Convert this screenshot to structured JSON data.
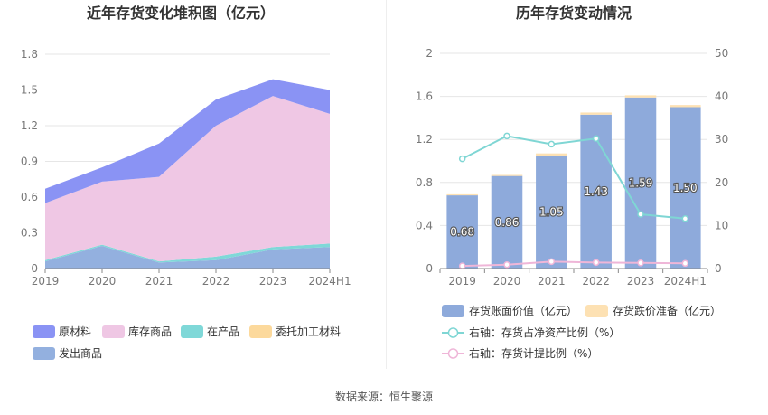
{
  "source": "数据来源：恒生聚源",
  "chart_data": [
    {
      "type": "area",
      "title": "近年存货变化堆积图（亿元）",
      "x": [
        "2019",
        "2020",
        "2021",
        "2022",
        "2023",
        "2024H1"
      ],
      "ylim": [
        0,
        1.8
      ],
      "yticks": [
        "0",
        "0.3",
        "0.6",
        "0.9",
        "1.2",
        "1.5",
        "1.8"
      ],
      "stacked": true,
      "grid": true,
      "legend_position": "bottom",
      "series": [
        {
          "name": "发出商品",
          "color": "#93b0df",
          "values": [
            0.06,
            0.19,
            0.05,
            0.07,
            0.16,
            0.18
          ]
        },
        {
          "name": "委托加工材料",
          "color": "#fcd99c",
          "values": [
            0.0,
            0.0,
            0.0,
            0.0,
            0.0,
            0.0
          ]
        },
        {
          "name": "在产品",
          "color": "#7fd8d8",
          "values": [
            0.01,
            0.01,
            0.01,
            0.03,
            0.02,
            0.03
          ]
        },
        {
          "name": "库存商品",
          "color": "#efc7e4",
          "values": [
            0.48,
            0.53,
            0.71,
            1.1,
            1.27,
            1.09
          ]
        },
        {
          "name": "原材料",
          "color": "#8a93f4",
          "values": [
            0.12,
            0.12,
            0.28,
            0.22,
            0.14,
            0.2
          ]
        }
      ],
      "legend": [
        {
          "name": "原材料",
          "color": "#8a93f4"
        },
        {
          "name": "库存商品",
          "color": "#efc7e4"
        },
        {
          "name": "在产品",
          "color": "#7fd8d8"
        },
        {
          "name": "委托加工材料",
          "color": "#fcd99c"
        },
        {
          "name": "发出商品",
          "color": "#93b0df"
        }
      ]
    },
    {
      "type": "bar",
      "title": "历年存货变动情况",
      "categories": [
        "2019",
        "2020",
        "2021",
        "2022",
        "2023",
        "2024H1"
      ],
      "ylim": [
        0,
        2
      ],
      "yticks": [
        "0",
        "0.4",
        "0.8",
        "1.2",
        "1.6",
        "2"
      ],
      "y2lim": [
        0,
        50
      ],
      "y2ticks": [
        "0",
        "10",
        "20",
        "30",
        "40",
        "50"
      ],
      "grid": true,
      "legend_position": "bottom",
      "series": [
        {
          "name": "存货账面价值（亿元）",
          "kind": "bar",
          "color": "#8eaadb",
          "values": [
            0.68,
            0.86,
            1.05,
            1.43,
            1.59,
            1.5
          ],
          "labels": [
            "0.68",
            "0.86",
            "1.05",
            "1.43",
            "1.59",
            "1.50"
          ]
        },
        {
          "name": "存货跌价准备（亿元）",
          "kind": "bar",
          "color": "#fde1b3",
          "values": [
            0.01,
            0.01,
            0.02,
            0.02,
            0.02,
            0.02
          ]
        },
        {
          "name": "右轴：存货占净资产比例（%）",
          "kind": "line",
          "axis": "right",
          "color": "#7fd6d4",
          "values": [
            25.5,
            30.8,
            28.9,
            30.2,
            12.6,
            11.6
          ]
        },
        {
          "name": "右轴：存货计提比例（%）",
          "kind": "line",
          "axis": "right",
          "color": "#efb6d8",
          "values": [
            0.6,
            0.9,
            1.6,
            1.4,
            1.3,
            1.2
          ]
        }
      ]
    }
  ]
}
